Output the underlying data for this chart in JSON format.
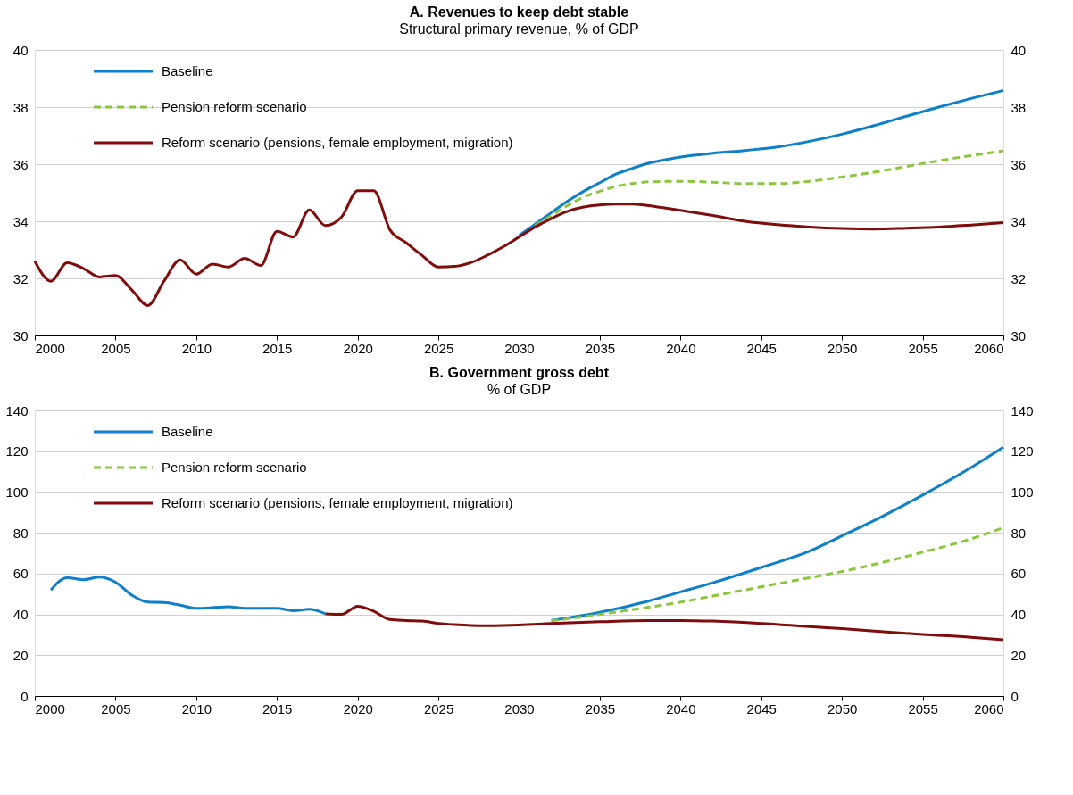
{
  "chart_data": [
    {
      "type": "line",
      "title": "A. Revenues to keep debt stable",
      "subtitle": "Structural primary revenue, % of GDP",
      "xlim": [
        2000,
        2060
      ],
      "xticks": [
        2000,
        2005,
        2010,
        2015,
        2020,
        2025,
        2030,
        2035,
        2040,
        2045,
        2050,
        2055,
        2060
      ],
      "ylim": [
        30,
        40
      ],
      "yticks": [
        30,
        32,
        34,
        36,
        38,
        40
      ],
      "y2lim": [
        30,
        40
      ],
      "y2ticks": [
        30,
        32,
        34,
        36,
        38,
        40
      ],
      "grid": "y",
      "legend": "top left",
      "marker": "none",
      "series": [
        {
          "name": "Baseline",
          "color": "#0f7fc8",
          "line_style": "solid",
          "x": [
            2030,
            2031,
            2032,
            2033,
            2034,
            2035,
            2036,
            2037,
            2038,
            2039,
            2040,
            2042,
            2044,
            2046,
            2048,
            2050,
            2052,
            2054,
            2056,
            2058,
            2060
          ],
          "values": [
            33.5,
            33.9,
            34.3,
            34.7,
            35.05,
            35.35,
            35.65,
            35.85,
            36.03,
            36.15,
            36.25,
            36.38,
            36.48,
            36.6,
            36.8,
            37.05,
            37.35,
            37.68,
            38.0,
            38.3,
            38.58
          ]
        },
        {
          "name": "Pension reform scenario",
          "color": "#8cc63f",
          "line_style": "dashed",
          "x": [
            2031,
            2032,
            2033,
            2034,
            2035,
            2036,
            2037,
            2038,
            2040,
            2042,
            2044,
            2046,
            2048,
            2050,
            2052,
            2054,
            2056,
            2058,
            2060
          ],
          "values": [
            33.85,
            34.2,
            34.55,
            34.85,
            35.05,
            35.22,
            35.32,
            35.38,
            35.4,
            35.37,
            35.32,
            35.32,
            35.4,
            35.55,
            35.72,
            35.92,
            36.12,
            36.3,
            36.47
          ]
        },
        {
          "name": "Reform scenario (pensions, female employment, migration)",
          "color": "#7f0d0d",
          "line_style": "solid",
          "x": [
            2000,
            2001,
            2002,
            2003,
            2004,
            2005,
            2006,
            2007,
            2008,
            2009,
            2010,
            2011,
            2012,
            2013,
            2014,
            2015,
            2016,
            2017,
            2018,
            2019,
            2020,
            2021,
            2022,
            2023,
            2024,
            2025,
            2026,
            2027,
            2028,
            2029,
            2030,
            2031,
            2032,
            2033,
            2034,
            2035,
            2036,
            2037,
            2038,
            2039,
            2040,
            2042,
            2044,
            2046,
            2048,
            2050,
            2052,
            2054,
            2056,
            2058,
            2060
          ],
          "values": [
            32.6,
            31.9,
            32.55,
            32.35,
            32.05,
            32.1,
            31.6,
            31.05,
            31.9,
            32.65,
            32.15,
            32.5,
            32.4,
            32.7,
            32.45,
            33.65,
            33.45,
            34.4,
            33.85,
            34.15,
            35.07,
            35.07,
            33.7,
            33.25,
            32.8,
            32.4,
            32.42,
            32.55,
            32.8,
            33.1,
            33.45,
            33.8,
            34.1,
            34.35,
            34.5,
            34.57,
            34.6,
            34.6,
            34.55,
            34.47,
            34.38,
            34.2,
            34.0,
            33.88,
            33.8,
            33.75,
            33.73,
            33.76,
            33.8,
            33.87,
            33.95
          ]
        }
      ]
    },
    {
      "type": "line",
      "title": "B. Government gross debt",
      "subtitle": "% of GDP",
      "xlim": [
        2000,
        2060
      ],
      "xticks": [
        2000,
        2005,
        2010,
        2015,
        2020,
        2025,
        2030,
        2035,
        2040,
        2045,
        2050,
        2055,
        2060
      ],
      "ylim": [
        0,
        140
      ],
      "yticks": [
        0,
        20,
        40,
        60,
        80,
        100,
        120,
        140
      ],
      "y2lim": [
        0,
        140
      ],
      "y2ticks": [
        0,
        20,
        40,
        60,
        80,
        100,
        120,
        140
      ],
      "grid": "y",
      "legend": "top left",
      "marker": "none",
      "series": [
        {
          "name": "Baseline",
          "color": "#0f7fc8",
          "line_style": "solid",
          "x": [
            2001,
            2002,
            2003,
            2004,
            2005,
            2006,
            2007,
            2008,
            2009,
            2010,
            2011,
            2012,
            2013,
            2014,
            2015,
            2016,
            2017,
            2018,
            2024,
            2032,
            2035,
            2038,
            2040,
            2042,
            2045,
            2048,
            2050,
            2052,
            2055,
            2058,
            2060
          ],
          "values": [
            52,
            58,
            57,
            58.3,
            55.8,
            49.5,
            46,
            45.8,
            44.5,
            43,
            43.3,
            43.8,
            43,
            43,
            43,
            41.8,
            42.5,
            40.3,
            null,
            37,
            41,
            46.5,
            51,
            55.5,
            63,
            71,
            78.5,
            86,
            98.5,
            112,
            122
          ]
        },
        {
          "name": "Pension reform scenario",
          "color": "#8cc63f",
          "line_style": "dashed",
          "x": [
            2032,
            2035,
            2038,
            2040,
            2042,
            2045,
            2048,
            2050,
            2052,
            2055,
            2058,
            2060
          ],
          "values": [
            36.8,
            40,
            43.5,
            46,
            49,
            53.5,
            58,
            61,
            64.5,
            70.5,
            77,
            82.5
          ]
        },
        {
          "name": "Reform scenario (pensions, female employment, migration)",
          "color": "#7f0d0d",
          "line_style": "solid",
          "x": [
            2018,
            2019,
            2020,
            2021,
            2022,
            2023,
            2024,
            2025,
            2026,
            2027,
            2028,
            2029,
            2030,
            2032,
            2035,
            2038,
            2040,
            2042,
            2045,
            2048,
            2050,
            2052,
            2055,
            2058,
            2060
          ],
          "values": [
            40.3,
            40,
            44,
            41.5,
            37.5,
            37,
            36.7,
            35.6,
            35,
            34.6,
            34.5,
            34.6,
            34.8,
            35.5,
            36.4,
            37,
            37,
            36.7,
            35.6,
            34,
            33,
            31.8,
            30.2,
            28.8,
            27.6
          ]
        }
      ]
    }
  ]
}
